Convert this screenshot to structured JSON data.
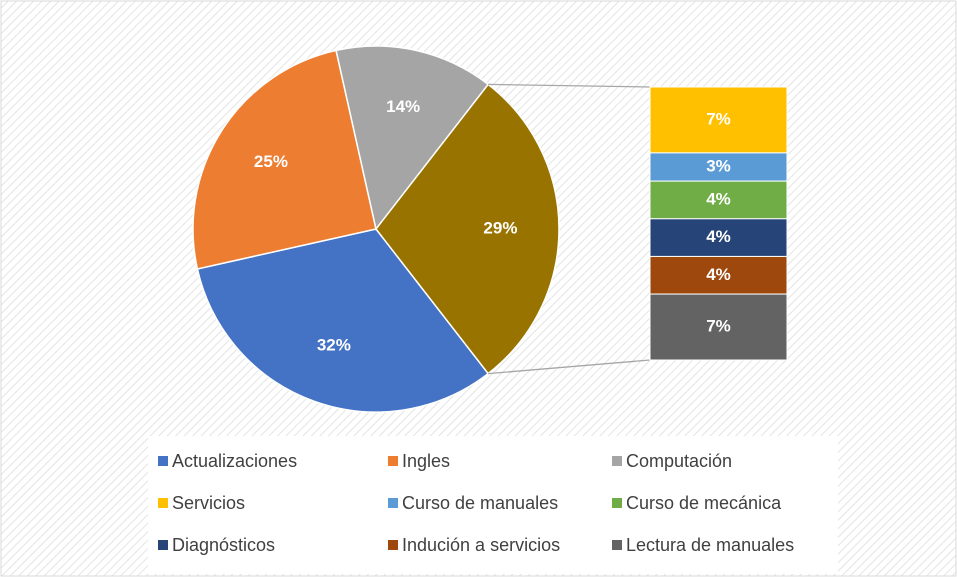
{
  "chart_data": {
    "type": "bar-of-pie",
    "pie": {
      "categories": [
        "Actualizaciones",
        "Ingles",
        "Computación",
        null
      ],
      "values": [
        32,
        25,
        14,
        29
      ],
      "value_labels": [
        "32%",
        "25%",
        "14%",
        "29%"
      ],
      "colors": [
        "#4472c4",
        "#ed7d31",
        "#a5a5a5",
        "#997300"
      ]
    },
    "bar": {
      "categories": [
        "Servicios",
        "Curso de manuales",
        "Curso de mecánica",
        "Diagnósticos",
        "Indución a servicios",
        "Lectura de manuales"
      ],
      "values": [
        7,
        3,
        4,
        4,
        4,
        7
      ],
      "value_labels": [
        "7%",
        "3%",
        "4%",
        "4%",
        "4%",
        "7%"
      ],
      "colors": [
        "#ffc000",
        "#5b9bd5",
        "#70ad47",
        "#264478",
        "#9e480e",
        "#636363"
      ]
    },
    "legend": "bottom"
  }
}
